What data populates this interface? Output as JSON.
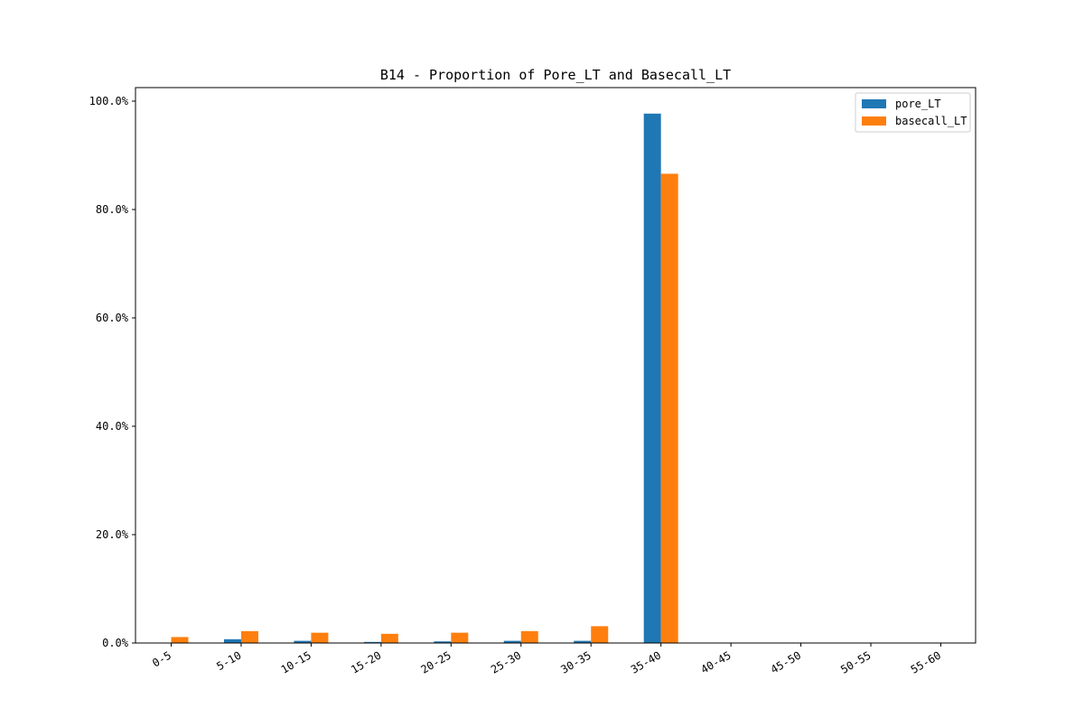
{
  "colors": {
    "pore_LT": "#1f77b4",
    "basecall_LT": "#ff7f0e",
    "axes": "#000000",
    "background": "#ffffff"
  },
  "chart_data": {
    "type": "bar",
    "title": "B14 -  Proportion of Pore_LT and Basecall_LT",
    "xlabel": "",
    "ylabel": "",
    "categories": [
      "0-5",
      "5-10",
      "10-15",
      "15-20",
      "20-25",
      "25-30",
      "30-35",
      "35-40",
      "40-45",
      "45-50",
      "50-55",
      "55-60"
    ],
    "series": [
      {
        "name": "pore_LT",
        "color": "#1f77b4",
        "values": [
          0.0,
          0.7,
          0.4,
          0.2,
          0.3,
          0.4,
          0.4,
          97.7,
          0.0,
          0.0,
          0.0,
          0.0
        ]
      },
      {
        "name": "basecall_LT",
        "color": "#ff7f0e",
        "values": [
          1.1,
          2.2,
          1.9,
          1.7,
          1.9,
          2.2,
          3.1,
          86.6,
          0.0,
          0.0,
          0.0,
          0.0
        ]
      }
    ],
    "ylim": [
      0,
      100
    ],
    "yticks": [
      0,
      20,
      40,
      60,
      80,
      100
    ],
    "ytick_labels": [
      "0.0%",
      "20.0%",
      "40.0%",
      "60.0%",
      "80.0%",
      "100.0%"
    ],
    "grid": false,
    "legend_position": "top-right"
  }
}
